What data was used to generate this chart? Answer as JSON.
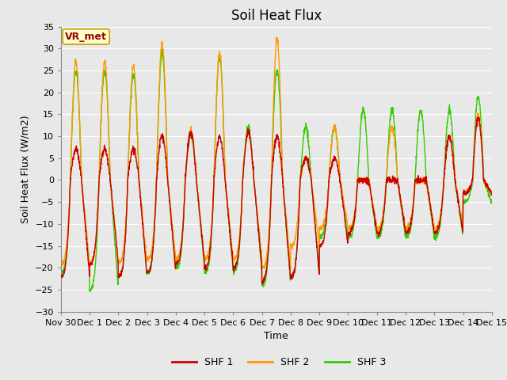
{
  "title": "Soil Heat Flux",
  "ylabel": "Soil Heat Flux (W/m2)",
  "xlabel": "Time",
  "ylim": [
    -30,
    35
  ],
  "yticks": [
    -30,
    -25,
    -20,
    -15,
    -10,
    -5,
    0,
    5,
    10,
    15,
    20,
    25,
    30,
    35
  ],
  "line_colors": [
    "#cc0000",
    "#ff9900",
    "#33cc00"
  ],
  "legend_labels": [
    "SHF 1",
    "SHF 2",
    "SHF 3"
  ],
  "annotation_text": "VR_met",
  "annotation_color": "#990000",
  "annotation_bg": "#ffffcc",
  "annotation_border": "#cc9900",
  "bg_color": "#e8e8e8",
  "grid_color": "#ffffff",
  "title_fontsize": 12,
  "label_fontsize": 9,
  "tick_fontsize": 8,
  "legend_fontsize": 9,
  "line_width": 1.0,
  "num_days": 15,
  "samples_per_day": 144,
  "day_peaks_1": [
    7,
    7,
    7,
    10,
    11,
    10,
    11,
    10,
    5,
    5,
    0,
    0,
    0,
    10,
    14
  ],
  "day_peaks_2": [
    27,
    27,
    26,
    31,
    11,
    29,
    11,
    32,
    5,
    12,
    0,
    12,
    0,
    10,
    15
  ],
  "day_peaks_3": [
    25,
    25,
    24,
    29,
    10,
    28,
    12,
    25,
    12,
    12,
    16,
    16,
    16,
    16,
    19
  ],
  "night_1": [
    -22,
    -19,
    -22,
    -21,
    -19,
    -20,
    -20,
    -23,
    -22,
    -15,
    -12,
    -12,
    -12,
    -12,
    -3
  ],
  "night_2": [
    -19,
    -19,
    -19,
    -18,
    -18,
    -18,
    -18,
    -20,
    -15,
    -11,
    -11,
    -11,
    -11,
    -11,
    -3
  ],
  "night_3": [
    -21,
    -25,
    -22,
    -21,
    -20,
    -21,
    -21,
    -24,
    -22,
    -13,
    -13,
    -13,
    -13,
    -13,
    -5
  ]
}
